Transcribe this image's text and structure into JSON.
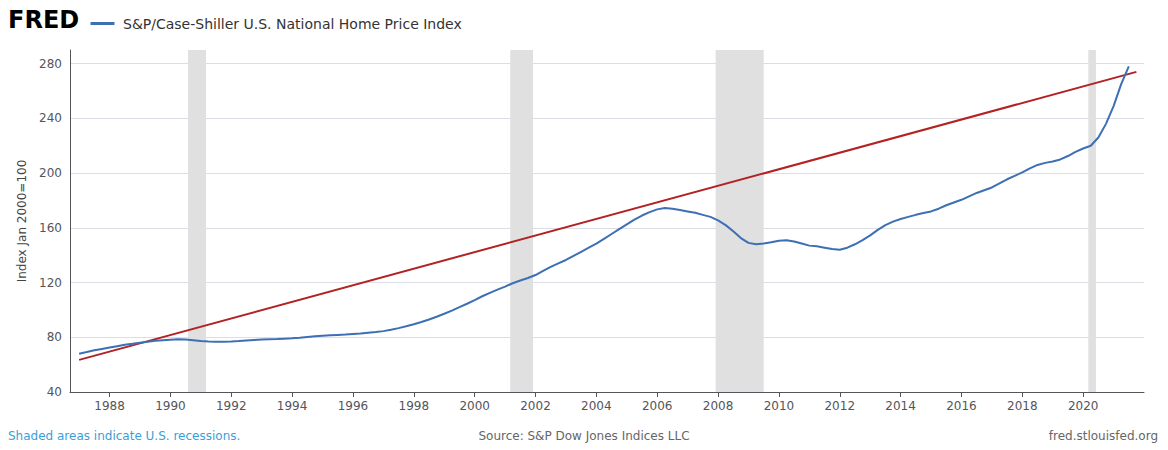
{
  "chart_data": {
    "type": "line",
    "title": "S&P/Case-Shiller U.S. National Home Price Index",
    "ylabel": "Index Jan 2000=100",
    "annotations": [
      "FRED",
      "Shaded areas indicate U.S. recessions.",
      "Source: S&P Dow Jones Indices LLC",
      "fred.stlouisfed.org"
    ],
    "xlim": [
      1986.7,
      2022.0
    ],
    "xticks": [
      1988,
      1990,
      1992,
      1994,
      1996,
      1998,
      2000,
      2002,
      2004,
      2006,
      2008,
      2010,
      2012,
      2014,
      2016,
      2018,
      2020
    ],
    "ylim": [
      40,
      290
    ],
    "yticks": [
      40,
      80,
      120,
      160,
      200,
      240,
      280
    ],
    "grid": true,
    "series": [
      {
        "type": "span",
        "color": "#e0e0e0",
        "ranges": [
          [
            1990.58,
            1991.17
          ],
          [
            2001.17,
            2001.92
          ],
          [
            2007.92,
            2009.5
          ],
          [
            2020.17,
            2020.42
          ]
        ]
      },
      {
        "type": "line",
        "color": "#b22222",
        "x": [
          1987.0,
          2021.75
        ],
        "values": [
          63.5,
          274.0
        ]
      },
      {
        "type": "line",
        "color": "#3d6fb5",
        "x": [
          1987.0,
          1987.25,
          1987.5,
          1987.75,
          1988.0,
          1988.25,
          1988.5,
          1988.75,
          1989.0,
          1989.25,
          1989.5,
          1989.75,
          1990.0,
          1990.25,
          1990.5,
          1990.75,
          1991.0,
          1991.25,
          1991.5,
          1991.75,
          1992.0,
          1992.25,
          1992.5,
          1992.75,
          1993.0,
          1993.25,
          1993.5,
          1993.75,
          1994.0,
          1994.25,
          1994.5,
          1994.75,
          1995.0,
          1995.25,
          1995.5,
          1995.75,
          1996.0,
          1996.25,
          1996.5,
          1996.75,
          1997.0,
          1997.25,
          1997.5,
          1997.75,
          1998.0,
          1998.25,
          1998.5,
          1998.75,
          1999.0,
          1999.25,
          1999.5,
          1999.75,
          2000.0,
          2000.25,
          2000.5,
          2000.75,
          2001.0,
          2001.25,
          2001.5,
          2001.75,
          2002.0,
          2002.25,
          2002.5,
          2002.75,
          2003.0,
          2003.25,
          2003.5,
          2003.75,
          2004.0,
          2004.25,
          2004.5,
          2004.75,
          2005.0,
          2005.25,
          2005.5,
          2005.75,
          2006.0,
          2006.25,
          2006.5,
          2006.75,
          2007.0,
          2007.25,
          2007.5,
          2007.75,
          2008.0,
          2008.25,
          2008.5,
          2008.75,
          2009.0,
          2009.25,
          2009.5,
          2009.75,
          2010.0,
          2010.25,
          2010.5,
          2010.75,
          2011.0,
          2011.25,
          2011.5,
          2011.75,
          2012.0,
          2012.25,
          2012.5,
          2012.75,
          2013.0,
          2013.25,
          2013.5,
          2013.75,
          2014.0,
          2014.25,
          2014.5,
          2014.75,
          2015.0,
          2015.25,
          2015.5,
          2015.75,
          2016.0,
          2016.25,
          2016.5,
          2016.75,
          2017.0,
          2017.25,
          2017.5,
          2017.75,
          2018.0,
          2018.25,
          2018.5,
          2018.75,
          2019.0,
          2019.25,
          2019.5,
          2019.75,
          2020.0,
          2020.25,
          2020.5,
          2020.75,
          2021.0,
          2021.25,
          2021.5
        ],
        "values": [
          68.0,
          69.2,
          70.5,
          71.5,
          72.5,
          73.5,
          74.5,
          75.2,
          76.0,
          76.8,
          77.4,
          77.8,
          78.2,
          78.5,
          78.3,
          77.8,
          77.2,
          76.9,
          76.8,
          76.8,
          77.0,
          77.3,
          77.7,
          78.0,
          78.3,
          78.5,
          78.7,
          79.0,
          79.3,
          79.7,
          80.2,
          80.7,
          81.1,
          81.4,
          81.7,
          82.0,
          82.4,
          82.8,
          83.3,
          83.8,
          84.5,
          85.5,
          86.7,
          88.0,
          89.5,
          91.2,
          93.0,
          95.0,
          97.2,
          99.5,
          102.0,
          104.5,
          107.2,
          110.0,
          112.5,
          114.8,
          117.0,
          119.5,
          121.5,
          123.3,
          125.5,
          128.5,
          131.5,
          134.0,
          136.5,
          139.5,
          142.5,
          145.5,
          148.5,
          152.0,
          155.5,
          159.0,
          162.5,
          166.0,
          169.0,
          171.5,
          173.5,
          174.5,
          174.0,
          173.0,
          172.0,
          171.0,
          169.5,
          168.0,
          165.5,
          162.0,
          157.5,
          152.5,
          149.0,
          148.0,
          148.5,
          149.5,
          150.5,
          151.0,
          150.0,
          148.5,
          147.0,
          146.5,
          145.5,
          144.5,
          144.0,
          145.5,
          148.0,
          151.0,
          154.5,
          158.5,
          162.0,
          164.5,
          166.5,
          168.0,
          169.5,
          170.8,
          172.0,
          174.0,
          176.5,
          178.5,
          180.5,
          183.0,
          185.5,
          187.5,
          189.5,
          192.5,
          195.5,
          198.0,
          200.5,
          203.5,
          206.0,
          207.5,
          208.5,
          210.0,
          212.5,
          215.5,
          218.0,
          220.0,
          226.0,
          236.0,
          249.0,
          265.0,
          278.0
        ]
      }
    ]
  }
}
